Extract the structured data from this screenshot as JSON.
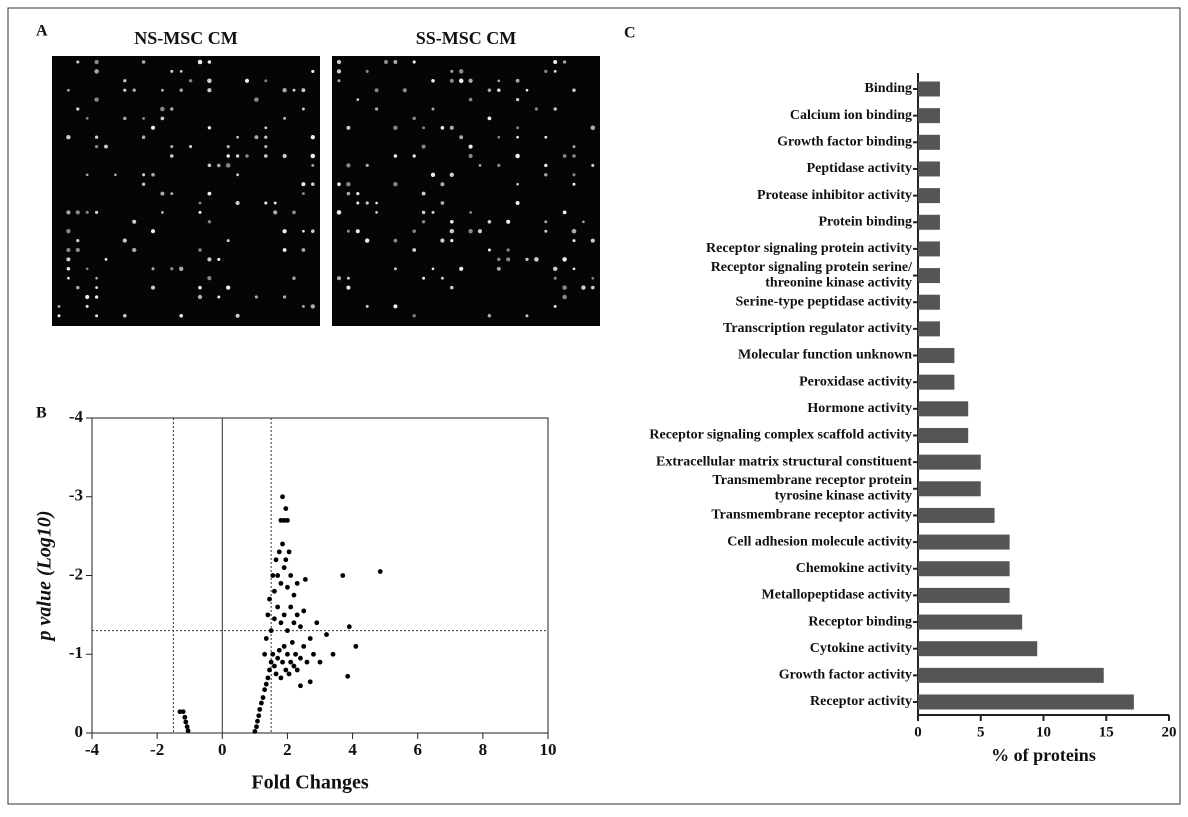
{
  "panel_a": {
    "label": "A",
    "images": [
      "NS-MSC CM",
      "SS-MSC CM"
    ]
  },
  "chart_data": [
    {
      "type": "scatter",
      "panel_label": "B",
      "xlabel": "Fold Changes",
      "ylabel": "p value (Log10)",
      "xlim": [
        -4,
        10
      ],
      "xticks": [
        -4,
        -2,
        0,
        2,
        4,
        6,
        8,
        10
      ],
      "ylim": [
        0,
        -4
      ],
      "yticks": [
        0,
        -1,
        -2,
        -3,
        -4
      ],
      "color": "#000000",
      "vlines": [
        {
          "x": -1.5,
          "style": "dotted"
        },
        {
          "x": 0,
          "style": "solid"
        },
        {
          "x": 1.5,
          "style": "dotted"
        }
      ],
      "hlines": [
        {
          "y": -1.3,
          "style": "dotted"
        }
      ],
      "x": [
        -1.3,
        -1.2,
        -1.15,
        -1.12,
        -1.08,
        -1.05,
        1.0,
        1.05,
        1.08,
        1.12,
        1.15,
        1.2,
        1.25,
        1.3,
        1.35,
        1.4,
        1.45,
        1.5,
        1.55,
        1.6,
        1.65,
        1.7,
        1.75,
        1.8,
        1.85,
        1.9,
        1.95,
        2.0,
        2.05,
        2.1,
        2.15,
        2.2,
        2.25,
        2.3,
        2.4,
        2.5,
        2.6,
        2.7,
        2.8,
        1.5,
        1.6,
        1.7,
        1.8,
        1.9,
        2.0,
        2.1,
        2.2,
        2.3,
        2.4,
        2.5,
        1.6,
        1.7,
        1.8,
        1.9,
        2.0,
        2.1,
        2.2,
        2.3,
        1.75,
        1.85,
        1.95,
        2.05,
        1.8,
        1.9,
        2.0,
        1.85,
        1.95,
        1.3,
        1.35,
        1.4,
        1.45,
        1.55,
        1.65,
        2.55,
        3.0,
        3.2,
        3.4,
        3.7,
        3.85,
        3.9,
        4.1,
        4.85,
        2.9,
        2.7,
        2.4
      ],
      "values": [
        -0.27,
        -0.27,
        -0.2,
        -0.14,
        -0.08,
        -0.03,
        -0.02,
        -0.08,
        -0.15,
        -0.22,
        -0.3,
        -0.38,
        -0.45,
        -0.55,
        -0.62,
        -0.7,
        -0.8,
        -0.9,
        -1.0,
        -0.85,
        -0.75,
        -0.95,
        -1.05,
        -0.7,
        -0.9,
        -1.1,
        -0.8,
        -1.0,
        -0.75,
        -0.9,
        -1.15,
        -0.85,
        -1.0,
        -0.8,
        -0.95,
        -1.1,
        -0.9,
        -1.2,
        -1.0,
        -1.3,
        -1.45,
        -1.6,
        -1.4,
        -1.5,
        -1.3,
        -1.6,
        -1.4,
        -1.5,
        -1.35,
        -1.55,
        -1.8,
        -2.0,
        -1.9,
        -2.1,
        -1.85,
        -2.0,
        -1.75,
        -1.9,
        -2.3,
        -2.4,
        -2.2,
        -2.3,
        -2.7,
        -2.7,
        -2.7,
        -3.0,
        -2.85,
        -1.0,
        -1.2,
        -1.5,
        -1.7,
        -2.0,
        -2.2,
        -1.95,
        -0.9,
        -1.25,
        -1.0,
        -2.0,
        -0.72,
        -1.35,
        -1.1,
        -2.05,
        -1.4,
        -0.65,
        -0.6
      ]
    },
    {
      "type": "hbar",
      "panel_label": "C",
      "xlabel": "% of proteins",
      "xlim": [
        0,
        20
      ],
      "xticks": [
        0,
        5,
        10,
        15,
        20
      ],
      "color": "#555555",
      "categories": [
        "Binding",
        "Calcium ion binding",
        "Growth factor binding",
        "Peptidase activity",
        "Protease inhibitor activity",
        "Protein binding",
        "Receptor signaling protein activity",
        "Receptor signaling protein serine/\nthreonine kinase activity",
        "Serine-type peptidase activity",
        "Transcription regulator activity",
        "Molecular function unknown",
        "Peroxidase activity",
        "Hormone activity",
        "Receptor signaling complex scaffold activity",
        "Extracellular matrix structural constituent",
        "Transmembrane receptor protein\ntyrosine kinase activity",
        "Transmembrane receptor activity",
        "Cell adhesion molecule activity",
        "Chemokine activity",
        "Metallopeptidase activity",
        "Receptor binding",
        "Cytokine activity",
        "Growth factor activity",
        "Receptor activity"
      ],
      "values": [
        1.75,
        1.75,
        1.75,
        1.75,
        1.75,
        1.75,
        1.75,
        1.75,
        1.75,
        1.75,
        2.9,
        2.9,
        4.0,
        4.0,
        5.0,
        5.0,
        6.1,
        7.3,
        7.3,
        7.3,
        8.3,
        9.5,
        14.8,
        17.2
      ]
    }
  ]
}
